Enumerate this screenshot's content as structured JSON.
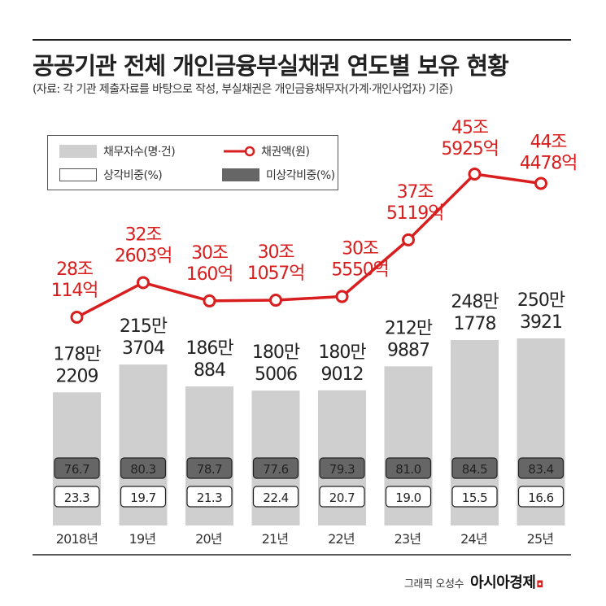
{
  "title": "공공기관 전체 개인금융부실채권 연도별 보유 현황",
  "subtitle": "(자료: 각 기관 제출자료를 바탕으로 작성, 부실채권은 개인금융채무자(가계·개인사업자) 기준)",
  "legend": {
    "debtors": "채무자수(명·건)",
    "amount": "채권액(원)",
    "written_off": "상각비중(%)",
    "not_written_off": "미상각비중(%)"
  },
  "colors": {
    "bar": "#cfcfcf",
    "line": "#d81e1e",
    "dark_box": "#666666",
    "text": "#222222"
  },
  "chart_data": {
    "type": "bar+line",
    "categories": [
      "2018년",
      "19년",
      "20년",
      "21년",
      "22년",
      "23년",
      "24년",
      "25년"
    ],
    "series": [
      {
        "name": "채무자수(명·건)",
        "type": "bar",
        "values": [
          1782209,
          2153704,
          1860884,
          1805006,
          1809012,
          2129887,
          2481778,
          2503921
        ],
        "labels": [
          [
            "178만",
            "2209"
          ],
          [
            "215만",
            "3704"
          ],
          [
            "186만",
            "884"
          ],
          [
            "180만",
            "5006"
          ],
          [
            "180만",
            "9012"
          ],
          [
            "212만",
            "9887"
          ],
          [
            "248만",
            "1778"
          ],
          [
            "250만",
            "3921"
          ]
        ]
      },
      {
        "name": "채권액(원)",
        "type": "line",
        "values": [
          28.0114,
          32.2603,
          30.016,
          30.1057,
          30.555,
          37.5119,
          45.5925,
          44.4478
        ],
        "unit": "조원",
        "labels": [
          [
            "28조",
            "114억"
          ],
          [
            "32조",
            "2603억"
          ],
          [
            "30조",
            "160억"
          ],
          [
            "30조",
            "1057억"
          ],
          [
            "30조",
            "5550억"
          ],
          [
            "37조",
            "5119억"
          ],
          [
            "45조",
            "5925억"
          ],
          [
            "44조",
            "4478억"
          ]
        ]
      },
      {
        "name": "미상각비중(%)",
        "type": "table",
        "values": [
          "76.7",
          "80.3",
          "78.7",
          "77.6",
          "79.3",
          "81.0",
          "84.5",
          "83.4"
        ]
      },
      {
        "name": "상각비중(%)",
        "type": "table",
        "values": [
          "23.3",
          "19.7",
          "21.3",
          "22.4",
          "20.7",
          "19.0",
          "15.5",
          "16.6"
        ]
      }
    ]
  },
  "credit": {
    "graphic_by": "그래픽 오성수",
    "brand": "아시아경제"
  }
}
